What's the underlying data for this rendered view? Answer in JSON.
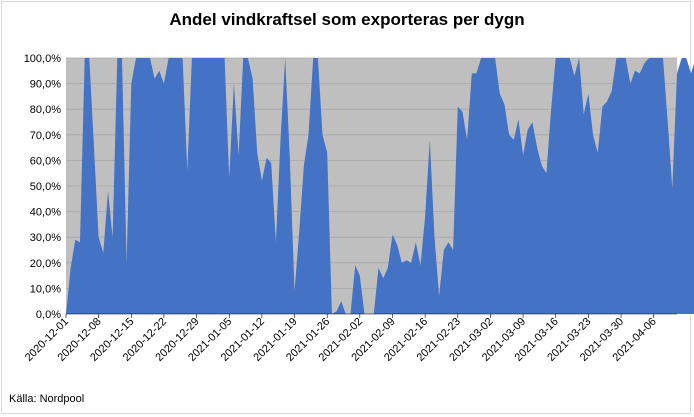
{
  "chart_data": {
    "type": "area",
    "title": "Andel vindkraftsel som exporteras per dygn",
    "source": "Källa: Nordpool",
    "xlabel": "",
    "ylabel": "",
    "ylim": [
      0,
      100
    ],
    "y_ticks": [
      "0,0%",
      "10,0%",
      "20,0%",
      "30,0%",
      "40,0%",
      "50,0%",
      "60,0%",
      "70,0%",
      "80,0%",
      "90,0%",
      "100,0%"
    ],
    "x_ticks": [
      "2020-12-01",
      "2020-12-08",
      "2020-12-15",
      "2020-12-22",
      "2020-12-29",
      "2021-01-05",
      "2021-01-12",
      "2021-01-19",
      "2021-01-26",
      "2021-02-02",
      "2021-02-09",
      "2021-02-16",
      "2021-02-23",
      "2021-03-02",
      "2021-03-09",
      "2021-03-16",
      "2021-03-23",
      "2021-03-30",
      "2021-04-06"
    ],
    "x_start": "2020-12-01",
    "x_end": "2021-04-11",
    "grid": true,
    "colors": {
      "area": "#4472c4",
      "plot_bg": "#bfbfbf",
      "grid": "#a6a6a6"
    },
    "values": [
      0,
      18,
      29,
      28,
      100,
      100,
      65,
      30,
      24,
      48,
      30,
      100,
      100,
      20,
      90,
      100,
      100,
      100,
      100,
      92,
      95,
      90,
      100,
      100,
      100,
      100,
      56,
      100,
      100,
      100,
      100,
      100,
      100,
      100,
      100,
      53,
      90,
      62,
      100,
      100,
      92,
      63,
      52,
      61,
      59,
      28,
      68,
      100,
      60,
      9,
      32,
      58,
      70,
      100,
      100,
      70,
      63,
      0,
      1,
      5,
      0,
      0,
      19,
      15,
      0,
      0,
      0,
      18,
      14,
      18,
      31,
      27,
      20,
      21,
      20,
      28,
      19,
      38,
      68,
      30,
      7,
      25,
      28,
      25,
      81,
      79,
      68,
      94,
      94,
      100,
      100,
      100,
      100,
      86,
      82,
      70,
      68,
      76,
      62,
      72,
      75,
      65,
      58,
      55,
      80,
      100,
      100,
      100,
      100,
      93,
      100,
      78,
      86,
      70,
      63,
      81,
      83,
      87,
      100,
      100,
      100,
      90,
      95,
      94,
      98,
      100,
      100,
      100,
      100,
      75,
      49,
      94,
      100,
      100,
      94,
      100
    ]
  }
}
